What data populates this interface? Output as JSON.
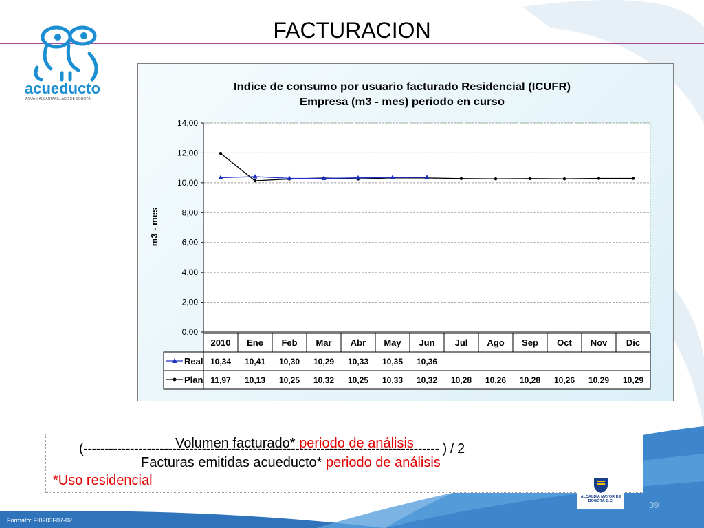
{
  "slide": {
    "title": "FACTURACION",
    "page_number": "39",
    "footer": "Formato: FI0203F07-02",
    "logo_text": "acueducto",
    "logo_subtext": "AGUA Y ALCANTARILLADO DE BOGOTÁ",
    "emblem_text": "ALCALDÍA MAYOR DE BOGOTÁ D.C."
  },
  "formula": {
    "numerator_prefix": "Volumen facturado*",
    "numerator_suffix": "periodo de análisis",
    "line": "(------------------------------------------------------------------------------------ ) / 2",
    "denominator_prefix": "Facturas emitidas acueducto*",
    "denominator_suffix": "periodo de análisis",
    "footnote": "*Uso residencial"
  },
  "colors": {
    "real": "#2030c0",
    "plan": "#000000",
    "accent_rule": "#a64d9c",
    "swoosh": "#4a8fd0",
    "red_text": "#e10000"
  },
  "chart_data": {
    "type": "line",
    "title": "Indice de consumo por usuario facturado Residencial (ICUFR)",
    "subtitle": "Empresa (m3 - mes) periodo en curso",
    "ylabel": "m3 - mes",
    "ylim": [
      0,
      14
    ],
    "yticks": [
      "0,00",
      "2,00",
      "4,00",
      "6,00",
      "8,00",
      "10,00",
      "12,00",
      "14,00"
    ],
    "categories": [
      "2010",
      "Ene",
      "Feb",
      "Mar",
      "Abr",
      "May",
      "Jun",
      "Jul",
      "Ago",
      "Sep",
      "Oct",
      "Nov",
      "Dic"
    ],
    "grid": true,
    "legend": "data-table",
    "series": [
      {
        "name": "Real",
        "values": [
          10.34,
          10.41,
          10.3,
          10.29,
          10.33,
          10.35,
          10.36,
          null,
          null,
          null,
          null,
          null,
          null
        ],
        "labels": [
          "10,34",
          "10,41",
          "10,30",
          "10,29",
          "10,33",
          "10,35",
          "10,36",
          "",
          "",
          "",
          "",
          "",
          ""
        ]
      },
      {
        "name": "Plan",
        "values": [
          11.97,
          10.13,
          10.25,
          10.32,
          10.25,
          10.33,
          10.32,
          10.28,
          10.26,
          10.28,
          10.26,
          10.29,
          10.29
        ],
        "labels": [
          "11,97",
          "10,13",
          "10,25",
          "10,32",
          "10,25",
          "10,33",
          "10,32",
          "10,28",
          "10,26",
          "10,28",
          "10,26",
          "10,29",
          "10,29"
        ]
      }
    ]
  }
}
